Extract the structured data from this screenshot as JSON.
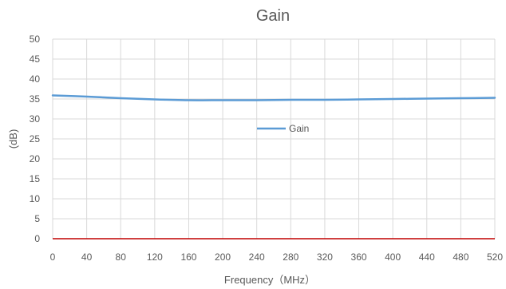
{
  "chart_data": {
    "type": "line",
    "title": "Gain",
    "xlabel": "Frequency（MHz）",
    "ylabel": "(dB)",
    "x": [
      0,
      40,
      80,
      120,
      160,
      200,
      240,
      280,
      320,
      360,
      400,
      440,
      480,
      520
    ],
    "xlim": [
      0,
      520
    ],
    "x_ticks": [
      "0",
      "40",
      "80",
      "120",
      "160",
      "200",
      "240",
      "280",
      "320",
      "360",
      "400",
      "440",
      "480",
      "520"
    ],
    "ylim": [
      0,
      50
    ],
    "y_ticks": [
      "0",
      "5",
      "10",
      "15",
      "20",
      "25",
      "30",
      "35",
      "40",
      "45",
      "50"
    ],
    "grid": true,
    "legend_position": "center",
    "series": [
      {
        "name": "Gain",
        "color": "#5B9BD5",
        "values": [
          35.9,
          35.6,
          35.2,
          34.9,
          34.7,
          34.7,
          34.7,
          34.8,
          34.8,
          34.9,
          35.0,
          35.1,
          35.2,
          35.3
        ]
      }
    ],
    "x_axis_color": "#C00000",
    "grid_color": "#D9D9D9"
  }
}
